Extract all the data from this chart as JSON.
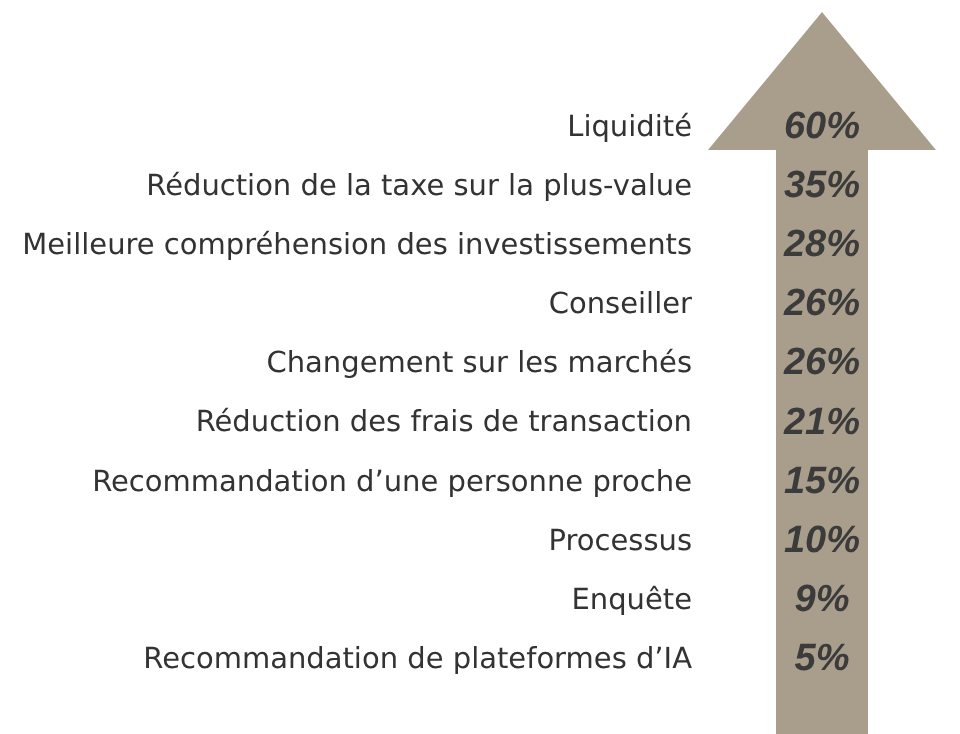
{
  "chart_data": {
    "type": "other",
    "color": "#a99e8b",
    "categories": [
      "Liquidité",
      "Réduction de la taxe sur la plus-value",
      "Meilleure compréhension des investissements",
      "Conseiller",
      "Changement sur les marchés",
      "Réduction des frais de transaction",
      "Recommandation d’une personne proche",
      "Processus",
      "Enquête",
      "Recommandation de plateformes d’IA"
    ],
    "values": [
      60,
      35,
      28,
      26,
      26,
      21,
      15,
      10,
      9,
      5
    ],
    "value_labels": [
      "60%",
      "35%",
      "28%",
      "26%",
      "26%",
      "21%",
      "15%",
      "10%",
      "9%",
      "5%"
    ]
  }
}
